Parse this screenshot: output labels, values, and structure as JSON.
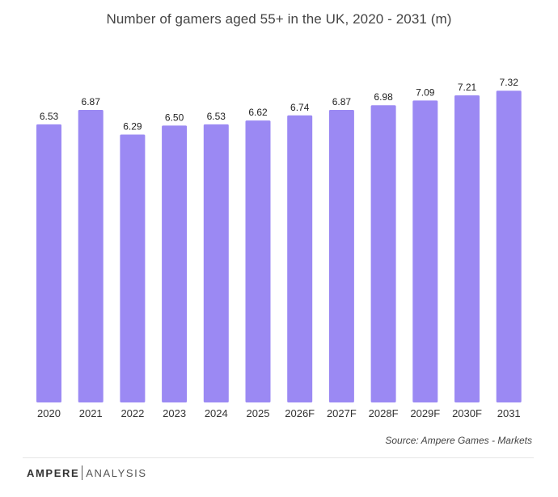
{
  "chart_data": {
    "type": "bar",
    "title": "Number of gamers aged 55+ in the UK, 2020 - 2031 (m)",
    "categories": [
      "2020",
      "2021",
      "2022",
      "2023",
      "2024",
      "2025",
      "2026F",
      "2027F",
      "2028F",
      "2029F",
      "2030F",
      "2031"
    ],
    "values": [
      6.53,
      6.87,
      6.29,
      6.5,
      6.53,
      6.62,
      6.74,
      6.87,
      6.98,
      7.09,
      7.21,
      7.32
    ],
    "value_labels": [
      "6.53",
      "6.87",
      "6.29",
      "6.50",
      "6.53",
      "6.62",
      "6.74",
      "6.87",
      "6.98",
      "7.09",
      "7.21",
      "7.32"
    ],
    "xlabel": "",
    "ylabel": "",
    "grid": false,
    "legend": "none",
    "bar_color": "#9b89f3"
  },
  "source": "Source:  Ampere Games - Markets",
  "logo": {
    "brand": "AMPERE",
    "suffix": "ANALYSIS"
  }
}
